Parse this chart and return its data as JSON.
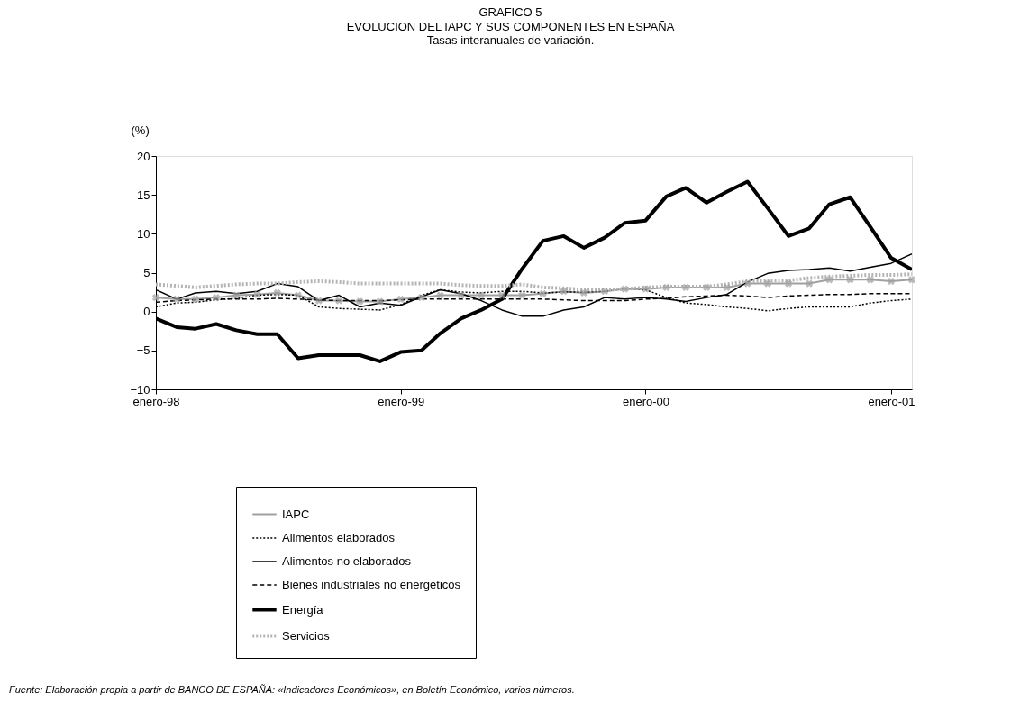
{
  "chart_data": {
    "type": "line",
    "title": "GRAFICO 5",
    "subtitle": "EVOLUCION DEL IAPC Y SUS COMPONENTES EN ESPAÑA\nTasas interanuales de variación.",
    "ylabel": "(%)",
    "x": [
      "1998-01",
      "1998-02",
      "1998-03",
      "1998-04",
      "1998-05",
      "1998-06",
      "1998-07",
      "1998-08",
      "1998-09",
      "1998-10",
      "1998-11",
      "1998-12",
      "1999-01",
      "1999-02",
      "1999-03",
      "1999-04",
      "1999-05",
      "1999-06",
      "1999-07",
      "1999-08",
      "1999-09",
      "1999-10",
      "1999-11",
      "1999-12",
      "2000-01",
      "2000-02",
      "2000-03",
      "2000-04",
      "2000-05",
      "2000-06",
      "2000-07",
      "2000-08",
      "2000-09",
      "2000-10",
      "2000-11",
      "2000-12",
      "2001-01",
      "2001-02"
    ],
    "xlim": [
      "1998-01",
      "2001-02"
    ],
    "xticks": [
      {
        "value": "1998-01",
        "label": "enero-98"
      },
      {
        "value": "1999-01",
        "label": "enero-99"
      },
      {
        "value": "2000-01",
        "label": "enero-00"
      },
      {
        "value": "2001-01",
        "label": "enero-01"
      }
    ],
    "ylim": [
      -10,
      20
    ],
    "yticks": [
      -10,
      -5,
      0,
      5,
      10,
      15,
      20
    ],
    "grid": false,
    "legend": "bottom",
    "series": [
      {
        "name": "IAPC",
        "color": "#a0a0a0",
        "line_style": "solid",
        "marker": "cross",
        "values": [
          1.8,
          1.6,
          1.6,
          1.8,
          2.1,
          2.2,
          2.4,
          2.1,
          1.4,
          1.4,
          1.3,
          1.3,
          1.6,
          1.8,
          2.1,
          2.1,
          2.1,
          2.1,
          2.1,
          2.3,
          2.6,
          2.4,
          2.6,
          2.9,
          2.9,
          3.1,
          3.1,
          3.1,
          3.1,
          3.6,
          3.6,
          3.6,
          3.6,
          4.1,
          4.1,
          4.1,
          3.9,
          4.1
        ]
      },
      {
        "name": "Alimentos elaborados",
        "color": "#000000",
        "line_style": "dotted",
        "values": [
          0.6,
          1.1,
          1.2,
          1.5,
          1.7,
          2.1,
          2.2,
          2.1,
          0.6,
          0.4,
          0.3,
          0.2,
          0.9,
          2.1,
          2.8,
          2.5,
          2.4,
          2.6,
          2.6,
          2.4,
          2.5,
          2.5,
          2.6,
          3.0,
          2.8,
          1.8,
          1.1,
          0.9,
          0.6,
          0.4,
          0.1,
          0.4,
          0.6,
          0.6,
          0.6,
          1.1,
          1.4,
          1.6
        ]
      },
      {
        "name": "Alimentos no elaborados",
        "color": "#000000",
        "line_style": "solid",
        "values": [
          2.8,
          1.6,
          2.4,
          2.6,
          2.3,
          2.6,
          3.6,
          3.2,
          1.4,
          2.1,
          0.6,
          1.1,
          0.8,
          1.9,
          2.8,
          2.3,
          1.4,
          0.2,
          -0.6,
          -0.6,
          0.2,
          0.6,
          1.8,
          1.6,
          1.8,
          1.6,
          1.3,
          1.8,
          2.2,
          3.8,
          4.9,
          5.3,
          5.4,
          5.6,
          5.2,
          5.7,
          6.2,
          7.4
        ]
      },
      {
        "name": "Bienes industriales no energéticos",
        "color": "#000000",
        "line_style": "dashed",
        "values": [
          1.2,
          1.4,
          1.5,
          1.6,
          1.6,
          1.6,
          1.7,
          1.6,
          1.5,
          1.4,
          1.4,
          1.4,
          1.5,
          1.6,
          1.6,
          1.6,
          1.6,
          1.6,
          1.6,
          1.6,
          1.5,
          1.4,
          1.4,
          1.4,
          1.6,
          1.7,
          1.9,
          2.0,
          2.1,
          2.0,
          1.8,
          2.0,
          2.1,
          2.2,
          2.2,
          2.3,
          2.3,
          2.3
        ]
      },
      {
        "name": "Energía",
        "color": "#000000",
        "line_style": "solid",
        "values": [
          -0.9,
          -2.0,
          -2.2,
          -1.6,
          -2.4,
          -2.9,
          -2.9,
          -6.0,
          -5.6,
          -5.6,
          -5.6,
          -6.4,
          -5.2,
          -5.0,
          -2.8,
          -0.9,
          0.2,
          1.6,
          5.5,
          9.1,
          9.7,
          8.2,
          9.5,
          11.4,
          11.7,
          14.8,
          15.9,
          14.0,
          15.4,
          16.7,
          13.3,
          9.7,
          10.7,
          13.8,
          14.7,
          10.9,
          6.9,
          5.4
        ]
      },
      {
        "name": "Servicios",
        "color": "#b4b4b4",
        "line_style": "dotted",
        "values": [
          3.5,
          3.3,
          3.1,
          3.3,
          3.5,
          3.6,
          3.6,
          3.8,
          3.9,
          3.8,
          3.6,
          3.6,
          3.6,
          3.6,
          3.6,
          3.4,
          3.3,
          3.3,
          3.5,
          3.1,
          3.0,
          2.8,
          2.8,
          2.9,
          3.1,
          3.2,
          3.2,
          3.2,
          3.5,
          3.9,
          4.0,
          4.0,
          4.3,
          4.5,
          4.6,
          4.7,
          4.7,
          4.8
        ]
      }
    ],
    "annotations": [
      "Fuente: Elaboración propia a partir de BANCO DE ESPAÑA: «Indicadores Económicos», en Boletín Económico, varios números."
    ]
  }
}
